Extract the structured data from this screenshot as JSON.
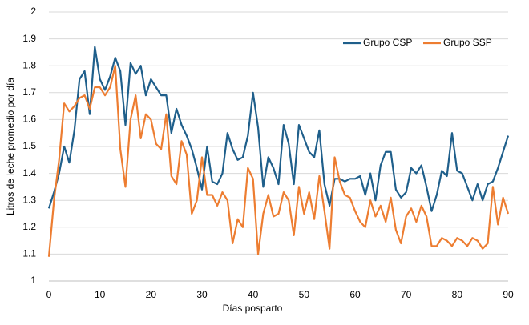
{
  "chart_data": {
    "type": "line",
    "xlabel": "Días posparto",
    "ylabel": "Litros de leche promedio por día",
    "x": [
      0,
      1,
      2,
      3,
      4,
      5,
      6,
      7,
      8,
      9,
      10,
      11,
      12,
      13,
      14,
      15,
      16,
      17,
      18,
      19,
      20,
      21,
      22,
      23,
      24,
      25,
      26,
      27,
      28,
      29,
      30,
      31,
      32,
      33,
      34,
      35,
      36,
      37,
      38,
      39,
      40,
      41,
      42,
      43,
      44,
      45,
      46,
      47,
      48,
      49,
      50,
      51,
      52,
      53,
      54,
      55,
      56,
      57,
      58,
      59,
      60,
      61,
      62,
      63,
      64,
      65,
      66,
      67,
      68,
      69,
      70,
      71,
      72,
      73,
      74,
      75,
      76,
      77,
      78,
      79,
      80,
      81,
      82,
      83,
      84,
      85,
      86,
      87,
      88,
      89,
      90
    ],
    "series": [
      {
        "name": "Grupo CSP",
        "color": "#1f5f8b",
        "values": [
          1.27,
          1.33,
          1.4,
          1.5,
          1.44,
          1.56,
          1.75,
          1.78,
          1.62,
          1.87,
          1.75,
          1.71,
          1.76,
          1.83,
          1.78,
          1.58,
          1.81,
          1.77,
          1.8,
          1.69,
          1.75,
          1.72,
          1.69,
          1.69,
          1.55,
          1.64,
          1.58,
          1.54,
          1.49,
          1.42,
          1.34,
          1.5,
          1.37,
          1.36,
          1.4,
          1.55,
          1.49,
          1.45,
          1.46,
          1.54,
          1.7,
          1.57,
          1.35,
          1.46,
          1.42,
          1.36,
          1.58,
          1.51,
          1.36,
          1.58,
          1.53,
          1.48,
          1.46,
          1.56,
          1.36,
          1.28,
          1.38,
          1.38,
          1.37,
          1.38,
          1.38,
          1.39,
          1.32,
          1.4,
          1.3,
          1.43,
          1.48,
          1.48,
          1.34,
          1.31,
          1.33,
          1.42,
          1.4,
          1.43,
          1.35,
          1.26,
          1.32,
          1.41,
          1.39,
          1.55,
          1.41,
          1.4,
          1.35,
          1.3,
          1.36,
          1.3,
          1.36,
          1.37,
          1.42,
          1.48,
          1.54
        ]
      },
      {
        "name": "Grupo SSP",
        "color": "#ed7d31",
        "values": [
          1.09,
          1.3,
          1.45,
          1.66,
          1.63,
          1.65,
          1.68,
          1.69,
          1.64,
          1.72,
          1.72,
          1.69,
          1.72,
          1.8,
          1.49,
          1.35,
          1.6,
          1.69,
          1.53,
          1.62,
          1.6,
          1.51,
          1.49,
          1.62,
          1.39,
          1.36,
          1.52,
          1.47,
          1.25,
          1.3,
          1.46,
          1.32,
          1.32,
          1.28,
          1.33,
          1.3,
          1.14,
          1.23,
          1.2,
          1.42,
          1.38,
          1.1,
          1.25,
          1.32,
          1.24,
          1.25,
          1.33,
          1.3,
          1.17,
          1.35,
          1.25,
          1.33,
          1.23,
          1.39,
          1.26,
          1.12,
          1.46,
          1.37,
          1.32,
          1.31,
          1.26,
          1.22,
          1.2,
          1.3,
          1.24,
          1.28,
          1.22,
          1.31,
          1.19,
          1.14,
          1.24,
          1.27,
          1.22,
          1.28,
          1.24,
          1.13,
          1.13,
          1.16,
          1.15,
          1.13,
          1.16,
          1.15,
          1.13,
          1.16,
          1.15,
          1.12,
          1.14,
          1.35,
          1.21,
          1.31,
          1.25
        ]
      }
    ],
    "xlim": [
      0,
      90
    ],
    "xticks": [
      0,
      10,
      20,
      30,
      40,
      50,
      60,
      70,
      80,
      90
    ],
    "ylim": [
      1,
      2
    ],
    "yticks": [
      1,
      1.1,
      1.2,
      1.3,
      1.4,
      1.5,
      1.6,
      1.7,
      1.8,
      1.9,
      2
    ],
    "grid": true,
    "legend": "upper right"
  }
}
